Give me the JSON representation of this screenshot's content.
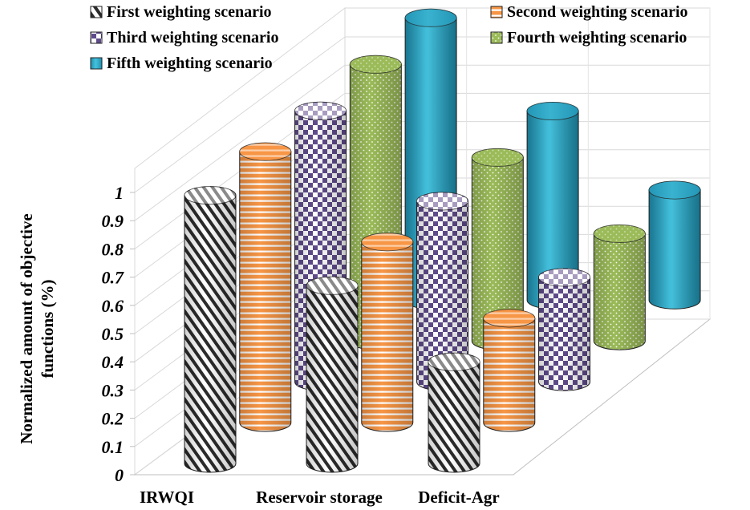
{
  "chart_data": {
    "type": "bar",
    "style": "3d-cylinder",
    "categories": [
      "IRWQI",
      "Reservoir storage",
      "Deficit-Agr"
    ],
    "series": [
      {
        "name": "First weighting scenario",
        "color": "#ffffff",
        "pattern": "diagonal-stripes",
        "values": [
          0.95,
          0.63,
          0.36
        ]
      },
      {
        "name": "Second weighting scenario",
        "color": "#f79646",
        "pattern": "horizontal-lines",
        "values": [
          0.96,
          0.64,
          0.37
        ]
      },
      {
        "name": "Third weighting scenario",
        "color": "#5f4b8b",
        "pattern": "checkerboard",
        "values": [
          0.96,
          0.64,
          0.37
        ]
      },
      {
        "name": "Fourth weighting scenario",
        "color": "#9bbb59",
        "pattern": "dots",
        "values": [
          0.98,
          0.65,
          0.38
        ]
      },
      {
        "name": "Fifth weighting scenario",
        "color": "#31b0cf",
        "pattern": "solid",
        "values": [
          1.0,
          0.67,
          0.39
        ]
      }
    ],
    "yticks": [
      "0",
      "0.1",
      "0.2",
      "0.3",
      "0.4",
      "0.5",
      "0.6",
      "0.7",
      "0.8",
      "0.9",
      "1"
    ],
    "ylim": [
      0,
      1
    ],
    "ylabel_line1": "Normalized amount of objective",
    "ylabel_line2": "functions  (%)",
    "xlabel": "",
    "legend_position": "top",
    "grid": true
  }
}
